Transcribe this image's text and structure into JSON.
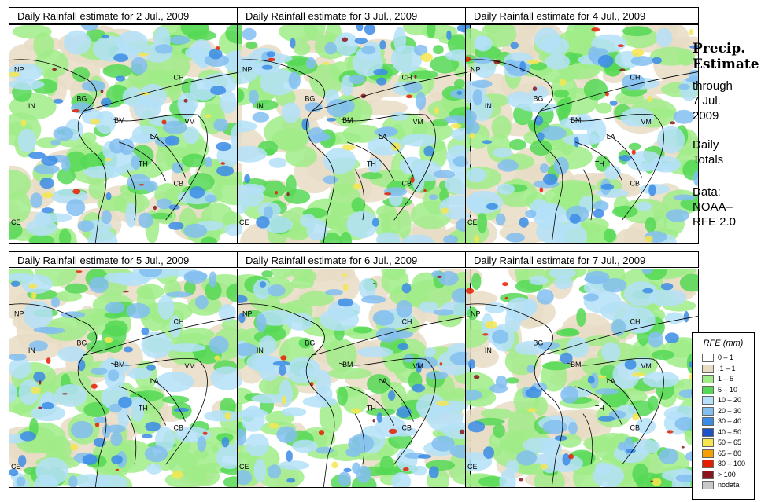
{
  "panels": [
    {
      "title": "Daily Rainfall estimate for  2 Jul., 2009",
      "seed": 2
    },
    {
      "title": "Daily Rainfall estimate for  3 Jul., 2009",
      "seed": 3
    },
    {
      "title": "Daily Rainfall estimate for  4 Jul., 2009",
      "seed": 4
    },
    {
      "title": "Daily Rainfall estimate for  5 Jul., 2009",
      "seed": 5
    },
    {
      "title": "Daily Rainfall estimate for  6 Jul., 2009",
      "seed": 6
    },
    {
      "title": "Daily Rainfall estimate for  7 Jul., 2009",
      "seed": 7
    }
  ],
  "country_labels": [
    "NP",
    "CH",
    "IN",
    "BG",
    "BM",
    "VM",
    "LA",
    "TH",
    "CB",
    "CE"
  ],
  "side": {
    "heading_line1": "Precip.",
    "heading_line2": "Estimate",
    "through": "through",
    "date_line1": "7 Jul.",
    "date_line2": "2009",
    "totals_line1": "Daily",
    "totals_line2": "Totals",
    "data_line1": "Data:",
    "data_line2": "NOAA–",
    "data_line3": "RFE 2.0"
  },
  "legend": {
    "title": "RFE (mm)",
    "items": [
      {
        "label": "0 – 1",
        "color": "#ffffff"
      },
      {
        "label": ".1 – 1",
        "color": "#e8dcc4"
      },
      {
        "label": "1 – 5",
        "color": "#a0ec88"
      },
      {
        "label": "5 – 10",
        "color": "#55d855"
      },
      {
        "label": "10 – 20",
        "color": "#b4e0f8"
      },
      {
        "label": "20 – 30",
        "color": "#82bef0"
      },
      {
        "label": "30 – 40",
        "color": "#3c8ce6"
      },
      {
        "label": "40 – 50",
        "color": "#1e50c8"
      },
      {
        "label": "50 – 65",
        "color": "#f5e650"
      },
      {
        "label": "65 – 80",
        "color": "#f5a000"
      },
      {
        "label": "80 – 100",
        "color": "#e61e00"
      },
      {
        "label": "> 100",
        "color": "#8c141e"
      },
      {
        "label": "nodata",
        "color": "#c8c8c8"
      }
    ]
  }
}
